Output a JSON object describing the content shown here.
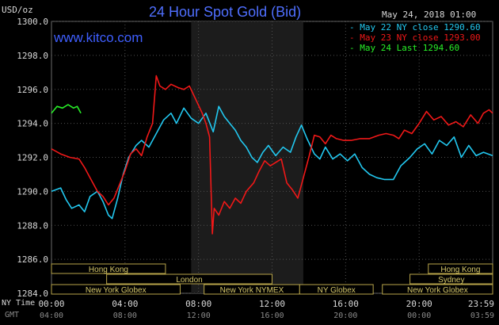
{
  "header": {
    "title": "24 Hour Spot Gold (Bid)",
    "website": "www.kitco.com",
    "timestamp": "May 24, 2018 01:00",
    "unit_label": "USD/oz"
  },
  "legend": [
    {
      "label": "May 22 NY close 1290.60",
      "color": "#22c8f0"
    },
    {
      "label": "May 23 NY close 1293.00",
      "color": "#f01818"
    },
    {
      "label": "May 24 Last 1294.60",
      "color": "#28f028"
    }
  ],
  "time_axis": {
    "ny_label": "NY Time",
    "gmt_label": "GMT",
    "ny_ticks": [
      "00:00",
      "04:00",
      "08:00",
      "12:00",
      "16:00",
      "20:00",
      "23:59"
    ],
    "gmt_ticks": [
      "04:00",
      "08:00",
      "12:00",
      "16:00",
      "20:00",
      "00:00",
      "03:59"
    ]
  },
  "sessions": [
    {
      "label": "Hong Kong",
      "start": 0,
      "end": 6.2
    },
    {
      "label": "London",
      "start": 3,
      "end": 12
    },
    {
      "label": "New York Globex",
      "start": 0,
      "end": 7
    },
    {
      "label": "New York NYMEX",
      "start": 8.3,
      "end": 13.5
    },
    {
      "label": "NY Globex",
      "start": 13.5,
      "end": 17.5
    },
    {
      "label": "Hong Kong",
      "start": 20.5,
      "end": 24
    },
    {
      "label": "Sydney",
      "start": 19.5,
      "end": 24
    },
    {
      "label": "New York Globex",
      "start": 18,
      "end": 24
    }
  ],
  "chart_data": {
    "type": "line",
    "title": "24 Hour Spot Gold (Bid)",
    "xlabel": "NY Time",
    "ylabel": "USD/oz",
    "xlim": [
      0,
      24
    ],
    "ylim": [
      1284,
      1300
    ],
    "yticks": [
      "1284.0",
      "1286.0",
      "1288.0",
      "1290.0",
      "1292.0",
      "1294.0",
      "1296.0",
      "1298.0",
      "1300.0"
    ],
    "grid": true,
    "legend_position": "top-right",
    "highlight_range": [
      7.6,
      13.7
    ],
    "series": [
      {
        "name": "May 22 NY close 1290.60",
        "color": "#22c8f0",
        "points": [
          [
            0,
            1290.0
          ],
          [
            0.5,
            1290.2
          ],
          [
            0.8,
            1289.5
          ],
          [
            1.1,
            1289.0
          ],
          [
            1.5,
            1289.2
          ],
          [
            1.8,
            1288.8
          ],
          [
            2.1,
            1289.7
          ],
          [
            2.5,
            1290.0
          ],
          [
            2.8,
            1289.4
          ],
          [
            3.1,
            1288.6
          ],
          [
            3.3,
            1288.4
          ],
          [
            3.6,
            1289.6
          ],
          [
            3.9,
            1291.0
          ],
          [
            4.2,
            1292.0
          ],
          [
            4.6,
            1292.7
          ],
          [
            4.9,
            1293.0
          ],
          [
            5.3,
            1292.6
          ],
          [
            5.7,
            1293.4
          ],
          [
            6.1,
            1294.2
          ],
          [
            6.5,
            1294.6
          ],
          [
            6.8,
            1294.0
          ],
          [
            7.2,
            1294.9
          ],
          [
            7.6,
            1294.3
          ],
          [
            8.0,
            1294.0
          ],
          [
            8.4,
            1294.6
          ],
          [
            8.8,
            1293.5
          ],
          [
            9.1,
            1295.0
          ],
          [
            9.4,
            1294.4
          ],
          [
            9.7,
            1294.0
          ],
          [
            10.0,
            1293.6
          ],
          [
            10.3,
            1293.0
          ],
          [
            10.6,
            1292.6
          ],
          [
            10.9,
            1292.0
          ],
          [
            11.2,
            1291.7
          ],
          [
            11.5,
            1292.3
          ],
          [
            11.8,
            1292.7
          ],
          [
            12.2,
            1292.1
          ],
          [
            12.6,
            1292.6
          ],
          [
            13.0,
            1292.3
          ],
          [
            13.3,
            1293.2
          ],
          [
            13.6,
            1293.9
          ],
          [
            13.9,
            1293.1
          ],
          [
            14.3,
            1292.2
          ],
          [
            14.6,
            1291.9
          ],
          [
            14.9,
            1292.6
          ],
          [
            15.3,
            1291.9
          ],
          [
            15.7,
            1292.2
          ],
          [
            16.1,
            1291.8
          ],
          [
            16.5,
            1292.2
          ],
          [
            16.9,
            1291.4
          ],
          [
            17.3,
            1291.0
          ],
          [
            17.7,
            1290.8
          ],
          [
            18.1,
            1290.7
          ],
          [
            18.6,
            1290.7
          ],
          [
            19.0,
            1291.5
          ],
          [
            19.5,
            1292.0
          ],
          [
            19.9,
            1292.5
          ],
          [
            20.3,
            1292.8
          ],
          [
            20.7,
            1292.2
          ],
          [
            21.1,
            1293.0
          ],
          [
            21.5,
            1292.7
          ],
          [
            21.9,
            1293.2
          ],
          [
            22.3,
            1292.0
          ],
          [
            22.7,
            1292.7
          ],
          [
            23.1,
            1292.1
          ],
          [
            23.5,
            1292.3
          ],
          [
            24.0,
            1292.1
          ]
        ]
      },
      {
        "name": "May 23 NY close 1293.00",
        "color": "#f01818",
        "points": [
          [
            0,
            1292.5
          ],
          [
            0.5,
            1292.2
          ],
          [
            1.0,
            1292.0
          ],
          [
            1.5,
            1291.9
          ],
          [
            1.8,
            1291.4
          ],
          [
            2.1,
            1290.8
          ],
          [
            2.5,
            1290.0
          ],
          [
            2.8,
            1289.7
          ],
          [
            3.1,
            1289.2
          ],
          [
            3.4,
            1289.6
          ],
          [
            3.7,
            1290.4
          ],
          [
            4.0,
            1291.2
          ],
          [
            4.3,
            1292.2
          ],
          [
            4.6,
            1292.5
          ],
          [
            4.9,
            1292.1
          ],
          [
            5.2,
            1293.2
          ],
          [
            5.5,
            1294.0
          ],
          [
            5.7,
            1296.8
          ],
          [
            5.9,
            1296.2
          ],
          [
            6.2,
            1296.0
          ],
          [
            6.5,
            1296.3
          ],
          [
            6.9,
            1296.1
          ],
          [
            7.2,
            1296.0
          ],
          [
            7.5,
            1296.2
          ],
          [
            7.9,
            1295.3
          ],
          [
            8.2,
            1294.6
          ],
          [
            8.4,
            1294.0
          ],
          [
            8.6,
            1293.2
          ],
          [
            8.75,
            1287.5
          ],
          [
            8.85,
            1289.0
          ],
          [
            9.1,
            1288.6
          ],
          [
            9.4,
            1289.4
          ],
          [
            9.7,
            1289.0
          ],
          [
            10.0,
            1289.6
          ],
          [
            10.3,
            1289.3
          ],
          [
            10.6,
            1290.0
          ],
          [
            11.0,
            1290.5
          ],
          [
            11.3,
            1291.2
          ],
          [
            11.6,
            1291.8
          ],
          [
            11.9,
            1291.5
          ],
          [
            12.2,
            1291.7
          ],
          [
            12.5,
            1291.9
          ],
          [
            12.8,
            1290.5
          ],
          [
            13.1,
            1290.1
          ],
          [
            13.4,
            1289.6
          ],
          [
            13.7,
            1290.8
          ],
          [
            14.0,
            1292.0
          ],
          [
            14.3,
            1293.3
          ],
          [
            14.6,
            1293.2
          ],
          [
            14.9,
            1292.8
          ],
          [
            15.2,
            1293.3
          ],
          [
            15.5,
            1293.1
          ],
          [
            15.9,
            1293.0
          ],
          [
            16.3,
            1293.0
          ],
          [
            16.8,
            1293.1
          ],
          [
            17.3,
            1293.1
          ],
          [
            17.8,
            1293.3
          ],
          [
            18.2,
            1293.4
          ],
          [
            18.6,
            1293.3
          ],
          [
            18.9,
            1293.1
          ],
          [
            19.2,
            1293.6
          ],
          [
            19.6,
            1293.4
          ],
          [
            20.0,
            1294.0
          ],
          [
            20.4,
            1294.7
          ],
          [
            20.8,
            1294.2
          ],
          [
            21.2,
            1294.4
          ],
          [
            21.6,
            1293.9
          ],
          [
            22.0,
            1294.1
          ],
          [
            22.4,
            1293.8
          ],
          [
            22.8,
            1294.5
          ],
          [
            23.2,
            1294.0
          ],
          [
            23.5,
            1294.6
          ],
          [
            23.8,
            1294.8
          ],
          [
            24.0,
            1294.6
          ]
        ]
      },
      {
        "name": "May 24 Last 1294.60",
        "color": "#28f028",
        "points": [
          [
            0,
            1294.6
          ],
          [
            0.3,
            1295.0
          ],
          [
            0.6,
            1294.9
          ],
          [
            0.9,
            1295.1
          ],
          [
            1.2,
            1294.9
          ],
          [
            1.4,
            1295.0
          ],
          [
            1.6,
            1294.6
          ]
        ]
      }
    ]
  }
}
